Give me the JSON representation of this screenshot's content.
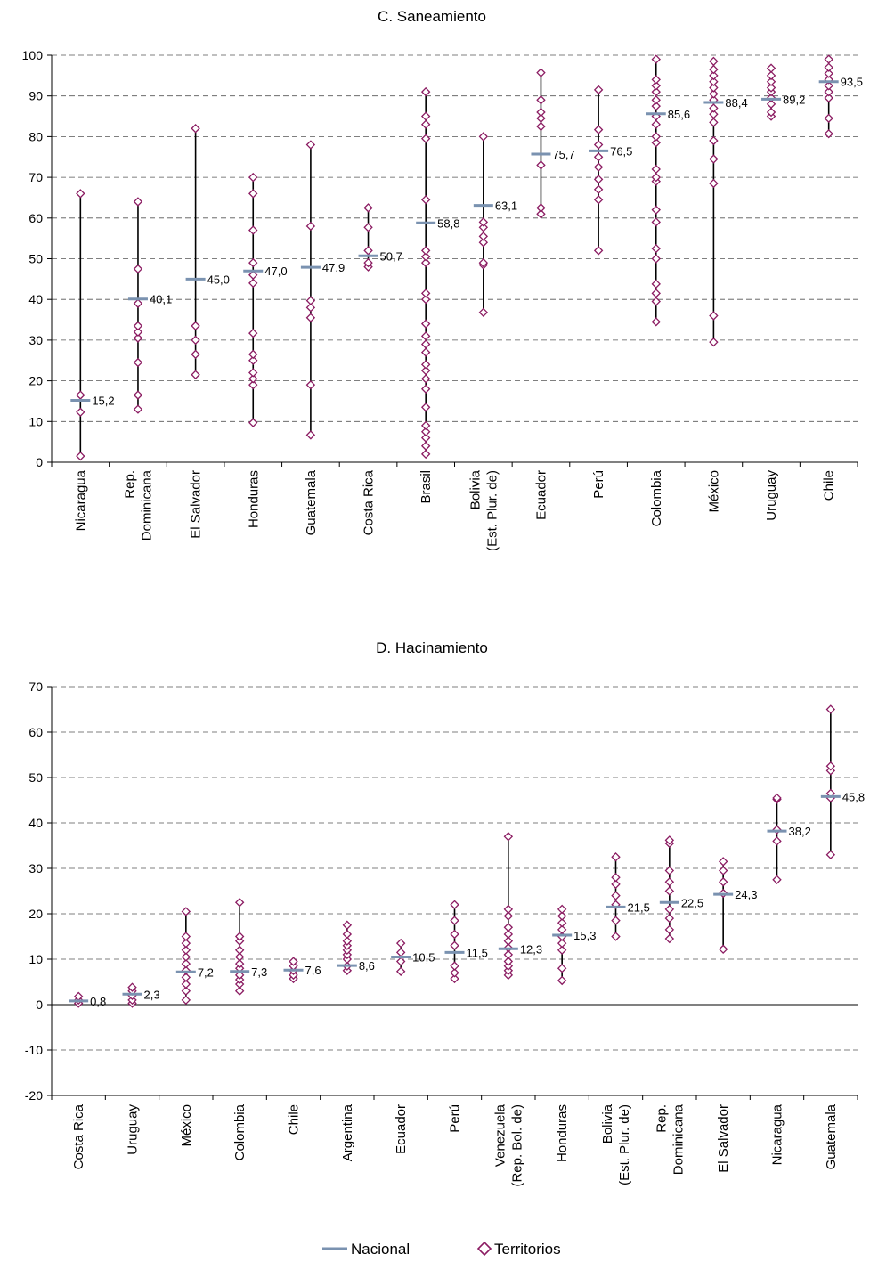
{
  "legend": {
    "nacional_label": "Nacional",
    "territorios_label": "Territorios"
  },
  "colors": {
    "nacional": "#7a92b0",
    "territorios": "#8b1c62",
    "range_line": "#000000",
    "grid": "#555555"
  },
  "chart_data": [
    {
      "type": "scatter",
      "title": "C. Saneamiento",
      "ylim": [
        0,
        100
      ],
      "yticks": [
        0,
        10,
        20,
        30,
        40,
        50,
        60,
        70,
        80,
        90,
        100
      ],
      "grid": "dashed horizontal",
      "categories": [
        [
          "Nicaragua"
        ],
        [
          "Rep.",
          "Dominicana"
        ],
        [
          "El Salvador"
        ],
        [
          "Honduras"
        ],
        [
          "Guatemala"
        ],
        [
          "Costa Rica"
        ],
        [
          "Brasil"
        ],
        [
          "Bolivia",
          "(Est. Plur. de)"
        ],
        [
          "Ecuador"
        ],
        [
          "Perú"
        ],
        [
          "Colombia"
        ],
        [
          "México"
        ],
        [
          "Uruguay"
        ],
        [
          "Chile"
        ]
      ],
      "nacional": [
        15.2,
        40.1,
        45.0,
        47.0,
        47.9,
        50.7,
        58.8,
        63.1,
        75.7,
        76.5,
        85.6,
        88.4,
        89.2,
        93.5
      ],
      "nacional_labels": [
        "15,2",
        "40,1",
        "45,0",
        "47,0",
        "47,9",
        "50,7",
        "58,8",
        "63,1",
        "75,7",
        "76,5",
        "85,6",
        "88,4",
        "89,2",
        "93,5"
      ],
      "territorios": [
        [
          1.5,
          12.3,
          16.5,
          66.0
        ],
        [
          13.0,
          16.5,
          24.5,
          30.5,
          32.0,
          33.5,
          39.0,
          47.5,
          64.0
        ],
        [
          21.5,
          26.5,
          30.0,
          33.5,
          82.0
        ],
        [
          9.7,
          19.0,
          20.5,
          22.0,
          25.0,
          26.5,
          31.7,
          44.0,
          46.0,
          49.0,
          57.0,
          66.0,
          70.0
        ],
        [
          6.7,
          19.0,
          35.5,
          38.0,
          39.7,
          58.0,
          78.0
        ],
        [
          48.0,
          49.0,
          52.0,
          57.7,
          62.5
        ],
        [
          2.0,
          4.0,
          6.0,
          7.5,
          9.0,
          13.5,
          18.0,
          20.5,
          22.5,
          24.0,
          27.0,
          29.0,
          31.0,
          34.0,
          40.0,
          41.5,
          49.0,
          50.5,
          52.0,
          64.5,
          79.5,
          83.0,
          85.0,
          91.0
        ],
        [
          36.8,
          48.5,
          49.0,
          54.0,
          55.5,
          57.7,
          59.0,
          80.0
        ],
        [
          61.0,
          62.5,
          73.0,
          82.5,
          84.5,
          86.0,
          89.0,
          95.7
        ],
        [
          52.0,
          64.5,
          67.0,
          69.5,
          72.5,
          75.0,
          78.0,
          81.7,
          91.5
        ],
        [
          34.5,
          39.5,
          41.5,
          43.8,
          50.0,
          52.5,
          59.0,
          62.0,
          69.0,
          70.0,
          72.0,
          78.5,
          80.0,
          83.0,
          85.0,
          87.5,
          89.0,
          91.0,
          92.5,
          94.0,
          99.0
        ],
        [
          29.5,
          36.0,
          68.5,
          74.5,
          79.0,
          83.5,
          85.5,
          87.0,
          89.0,
          90.5,
          92.0,
          93.5,
          95.0,
          96.5,
          98.5
        ],
        [
          85.0,
          86.0,
          88.0,
          89.5,
          91.0,
          92.0,
          93.5,
          95.0,
          96.8
        ],
        [
          80.7,
          84.5,
          89.5,
          91.0,
          92.5,
          94.0,
          95.5,
          97.0,
          99.0
        ]
      ]
    },
    {
      "type": "scatter",
      "title": "D. Hacinamiento",
      "ylim": [
        -20,
        70
      ],
      "yticks": [
        -20,
        -10,
        0,
        10,
        20,
        30,
        40,
        50,
        60,
        70
      ],
      "grid": "dashed horizontal",
      "categories": [
        [
          "Costa Rica"
        ],
        [
          "Uruguay"
        ],
        [
          "México"
        ],
        [
          "Colombia"
        ],
        [
          "Chile"
        ],
        [
          "Argentina"
        ],
        [
          "Ecuador"
        ],
        [
          "Perú"
        ],
        [
          "Venezuela",
          "(Rep. Bol. de)"
        ],
        [
          "Honduras"
        ],
        [
          "Bolivia",
          "(Est. Plur. de)"
        ],
        [
          "Rep.",
          "Dominicana"
        ],
        [
          "El Salvador"
        ],
        [
          "Nicaragua"
        ],
        [
          "Guatemala"
        ]
      ],
      "nacional": [
        0.8,
        2.3,
        7.2,
        7.3,
        7.6,
        8.6,
        10.5,
        11.5,
        12.3,
        15.3,
        21.5,
        22.5,
        24.3,
        38.2,
        45.8
      ],
      "nacional_labels": [
        "0,8",
        "2,3",
        "7,2",
        "7,3",
        "7,6",
        "8,6",
        "10,5",
        "11,5",
        "12,3",
        "15,3",
        "21,5",
        "22,5",
        "24,3",
        "38,2",
        "45,8"
      ],
      "territorios": [
        [
          0.3,
          1.0,
          1.8
        ],
        [
          0.3,
          1.0,
          2.0,
          3.0,
          3.8
        ],
        [
          1.0,
          3.0,
          4.5,
          6.0,
          7.5,
          9.0,
          10.5,
          12.0,
          13.5,
          15.0,
          20.5
        ],
        [
          3.0,
          4.5,
          5.5,
          6.5,
          8.0,
          9.0,
          10.5,
          12.0,
          14.0,
          15.0,
          22.5
        ],
        [
          5.7,
          6.5,
          7.5,
          8.5,
          9.5
        ],
        [
          7.5,
          8.5,
          10.0,
          11.0,
          12.0,
          13.0,
          14.0,
          15.5,
          17.5
        ],
        [
          7.3,
          9.5,
          11.5,
          13.5
        ],
        [
          5.7,
          7.0,
          8.5,
          13.0,
          15.5,
          18.5,
          22.0
        ],
        [
          6.5,
          7.5,
          8.5,
          9.5,
          11.0,
          12.5,
          14.0,
          15.5,
          17.0,
          19.5,
          21.0,
          37.0
        ],
        [
          5.3,
          8.0,
          12.0,
          13.5,
          15.0,
          16.5,
          18.0,
          19.5,
          21.0
        ],
        [
          15.0,
          18.5,
          22.0,
          24.0,
          26.5,
          28.0,
          32.5
        ],
        [
          14.5,
          16.5,
          19.0,
          21.0,
          25.0,
          27.0,
          29.5,
          35.5,
          36.2
        ],
        [
          12.2,
          24.5,
          27.0,
          29.5,
          31.5
        ],
        [
          27.5,
          36.0,
          38.5,
          45.2,
          45.5
        ],
        [
          33.0,
          45.5,
          46.5,
          51.5,
          52.5,
          65.0
        ]
      ]
    }
  ]
}
